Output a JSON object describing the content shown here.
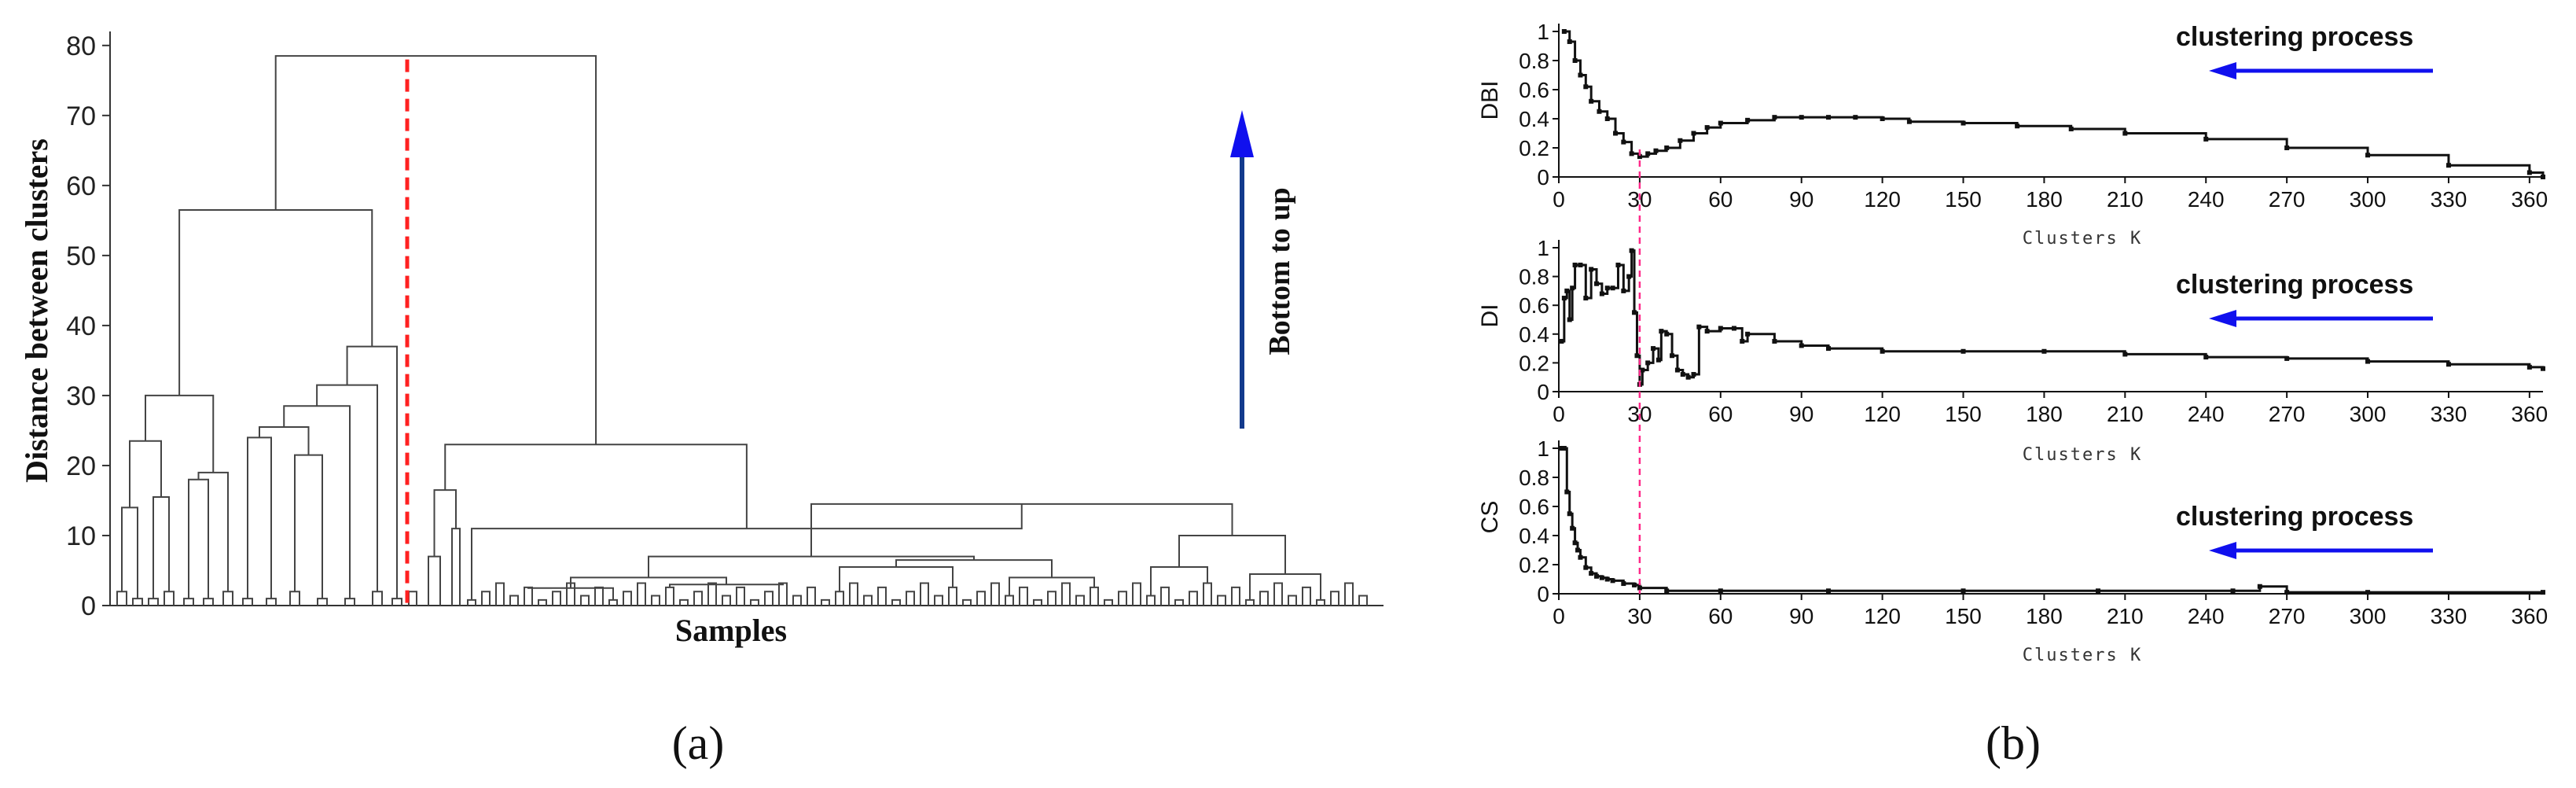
{
  "figure": {
    "panel_a_label": "(a)",
    "panel_b_label": "(b)"
  },
  "chart_data": [
    {
      "type": "dendrogram",
      "xlabel": "Samples",
      "ylabel": "Distance between clusters",
      "ylim": [
        0,
        82
      ],
      "yticks": [
        0,
        10,
        20,
        30,
        40,
        50,
        60,
        70,
        80
      ],
      "cut_line_color": "#ff2020",
      "arrow_label": "Bottom to up",
      "arrow_color": "#1010ee",
      "root_merge_height": 78.5,
      "left_cluster_height": 56.5,
      "right_cluster_height": 23,
      "left_cluster_merges": [
        30,
        23.5,
        19,
        18,
        15.5,
        14,
        24,
        21.5,
        25.5,
        28.5,
        31.5,
        37,
        30,
        25.5
      ],
      "right_cluster_merges": [
        16.5,
        11,
        7,
        14.5,
        10,
        6.5,
        4,
        3,
        2.5,
        5.5,
        4,
        10.5,
        5.5,
        4.5,
        3,
        2
      ]
    },
    {
      "type": "line",
      "ylabel": "DBI",
      "xlabel": "Clusters K",
      "xlim": [
        0,
        365
      ],
      "ylim": [
        0,
        1.0
      ],
      "xticks": [
        0,
        30,
        60,
        90,
        120,
        150,
        180,
        210,
        240,
        270,
        300,
        330,
        360
      ],
      "yticks": [
        0.0,
        0.2,
        0.4,
        0.6,
        0.8,
        1.0
      ],
      "annotation": "clustering process",
      "annotation_color": "#1010ee",
      "marker_line_x": 30,
      "x": [
        2,
        4,
        6,
        8,
        10,
        12,
        15,
        18,
        21,
        24,
        27,
        30,
        33,
        36,
        40,
        45,
        50,
        55,
        60,
        70,
        80,
        90,
        100,
        110,
        120,
        130,
        150,
        170,
        190,
        210,
        240,
        270,
        300,
        330,
        360,
        365
      ],
      "values": [
        1.0,
        0.93,
        0.8,
        0.7,
        0.62,
        0.52,
        0.45,
        0.4,
        0.3,
        0.24,
        0.16,
        0.14,
        0.16,
        0.18,
        0.2,
        0.25,
        0.3,
        0.34,
        0.37,
        0.39,
        0.41,
        0.41,
        0.41,
        0.41,
        0.4,
        0.38,
        0.37,
        0.35,
        0.33,
        0.3,
        0.26,
        0.2,
        0.15,
        0.08,
        0.03,
        0.0
      ]
    },
    {
      "type": "line",
      "ylabel": "DI",
      "xlabel": "Clusters K",
      "xlim": [
        0,
        365
      ],
      "ylim": [
        0,
        1.0
      ],
      "xticks": [
        0,
        30,
        60,
        90,
        120,
        150,
        180,
        210,
        240,
        270,
        300,
        330,
        360
      ],
      "yticks": [
        0.0,
        0.2,
        0.4,
        0.6,
        0.8,
        1.0
      ],
      "annotation": "clustering process",
      "annotation_color": "#1010ee",
      "marker_line_x": 30,
      "x": [
        1,
        2,
        3,
        4,
        5,
        6,
        8,
        10,
        12,
        14,
        16,
        18,
        20,
        22,
        24,
        26,
        27,
        28,
        29,
        30,
        31,
        33,
        35,
        37,
        38,
        40,
        42,
        44,
        46,
        48,
        50,
        52,
        55,
        60,
        65,
        68,
        70,
        80,
        90,
        100,
        120,
        150,
        180,
        210,
        240,
        270,
        300,
        330,
        360,
        365
      ],
      "values": [
        0.35,
        0.65,
        0.7,
        0.5,
        0.72,
        0.88,
        0.88,
        0.65,
        0.85,
        0.75,
        0.68,
        0.72,
        0.72,
        0.88,
        0.7,
        0.8,
        0.98,
        0.55,
        0.25,
        0.05,
        0.15,
        0.2,
        0.3,
        0.22,
        0.42,
        0.4,
        0.25,
        0.15,
        0.12,
        0.1,
        0.12,
        0.45,
        0.42,
        0.44,
        0.44,
        0.35,
        0.4,
        0.35,
        0.32,
        0.3,
        0.28,
        0.28,
        0.28,
        0.26,
        0.24,
        0.23,
        0.21,
        0.19,
        0.17,
        0.16
      ]
    },
    {
      "type": "line",
      "ylabel": "CS",
      "xlabel": "Clusters  K",
      "xlim": [
        0,
        365
      ],
      "ylim": [
        0,
        1.0
      ],
      "xticks": [
        0,
        30,
        60,
        90,
        120,
        150,
        180,
        210,
        240,
        270,
        300,
        330,
        360
      ],
      "yticks": [
        0.0,
        0.2,
        0.4,
        0.6,
        0.8,
        1.0
      ],
      "annotation": "clustering process",
      "annotation_color": "#1010ee",
      "marker_line_x": 30,
      "x": [
        1,
        2,
        3,
        4,
        5,
        6,
        7,
        8,
        10,
        12,
        14,
        16,
        18,
        20,
        24,
        28,
        30,
        40,
        60,
        100,
        150,
        200,
        250,
        260,
        270,
        300,
        365
      ],
      "values": [
        1.0,
        1.0,
        0.7,
        0.55,
        0.45,
        0.35,
        0.3,
        0.25,
        0.18,
        0.14,
        0.12,
        0.11,
        0.1,
        0.09,
        0.07,
        0.06,
        0.04,
        0.02,
        0.02,
        0.02,
        0.02,
        0.02,
        0.02,
        0.05,
        0.01,
        0.01,
        0.01
      ]
    }
  ]
}
